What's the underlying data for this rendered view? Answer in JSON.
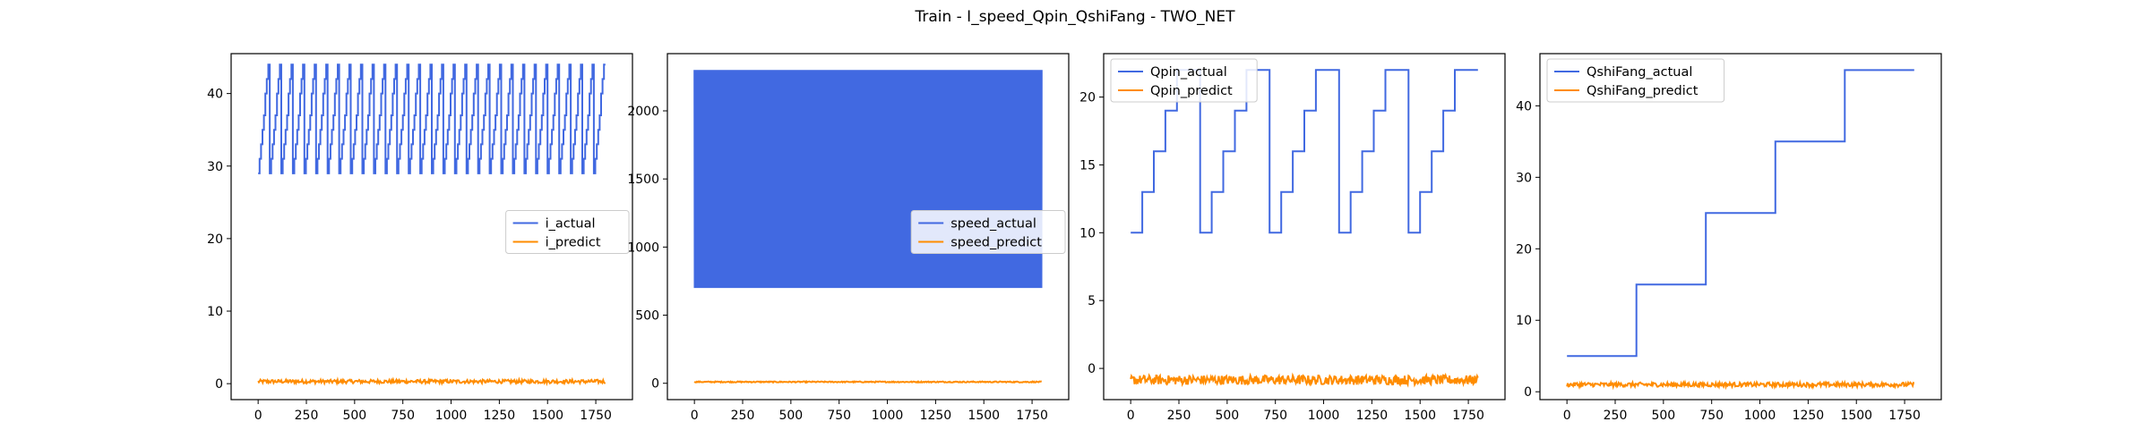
{
  "title": "Train - I_speed_Qpin_QshiFang - TWO_NET",
  "colors": {
    "actual": "#4169e1",
    "predict": "#ff8c00"
  },
  "chart_data": [
    {
      "type": "line",
      "xlim": [
        -140,
        1940
      ],
      "ylim": [
        -2.2,
        45.5
      ],
      "x_ticks": [
        0,
        250,
        500,
        750,
        1000,
        1250,
        1500,
        1750
      ],
      "y_ticks": [
        0,
        10,
        20,
        30,
        40
      ],
      "legend_position": "center-right",
      "series": [
        {
          "name": "i_actual",
          "pattern": "sawtooth",
          "x_range": [
            0,
            1800
          ],
          "period": 60,
          "levels": [
            29,
            31,
            33,
            35,
            37,
            40,
            42,
            44
          ]
        },
        {
          "name": "i_predict",
          "pattern": "noise",
          "x_range": [
            0,
            1800
          ],
          "mean": 0.3,
          "amplitude": 0.25
        }
      ]
    },
    {
      "type": "line",
      "xlim": [
        -140,
        1940
      ],
      "ylim": [
        -120,
        2420
      ],
      "x_ticks": [
        0,
        250,
        500,
        750,
        1000,
        1250,
        1500,
        1750
      ],
      "y_ticks": [
        0,
        500,
        1000,
        1500,
        2000
      ],
      "legend_position": "center-right",
      "series": [
        {
          "name": "speed_actual",
          "pattern": "dense-oscillation",
          "x_range": [
            0,
            1800
          ],
          "low": 700,
          "high": 2300
        },
        {
          "name": "speed_predict",
          "pattern": "noise",
          "x_range": [
            0,
            1800
          ],
          "mean": 10,
          "amplitude": 4
        }
      ]
    },
    {
      "type": "line",
      "xlim": [
        -140,
        1940
      ],
      "ylim": [
        -2.3,
        23.2
      ],
      "x_ticks": [
        0,
        250,
        500,
        750,
        1000,
        1250,
        1500,
        1750
      ],
      "y_ticks": [
        0,
        5,
        10,
        15,
        20
      ],
      "legend_position": "upper-left",
      "series": [
        {
          "name": "Qpin_actual",
          "pattern": "staircase",
          "x_range": [
            0,
            1800
          ],
          "step": 60,
          "levels": [
            10,
            13,
            16,
            19,
            22,
            22
          ]
        },
        {
          "name": "Qpin_predict",
          "pattern": "noise",
          "x_range": [
            0,
            1800
          ],
          "mean": -0.85,
          "amplitude": 0.35
        }
      ]
    },
    {
      "type": "line",
      "xlim": [
        -140,
        1940
      ],
      "ylim": [
        -1.1,
        47.3
      ],
      "x_ticks": [
        0,
        250,
        500,
        750,
        1000,
        1250,
        1500,
        1750
      ],
      "y_ticks": [
        0,
        10,
        20,
        30,
        40
      ],
      "legend_position": "upper-left",
      "series": [
        {
          "name": "QshiFang_actual",
          "pattern": "staircase",
          "x_range": [
            0,
            1800
          ],
          "step": 360,
          "levels": [
            5,
            15,
            25,
            35,
            45
          ]
        },
        {
          "name": "QshiFang_predict",
          "pattern": "noise",
          "x_range": [
            0,
            1800
          ],
          "mean": 1.0,
          "amplitude": 0.3
        }
      ]
    }
  ]
}
